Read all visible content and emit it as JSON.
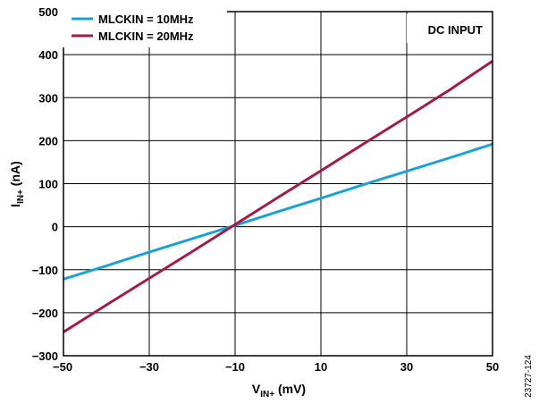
{
  "chart_data": {
    "type": "line",
    "x_label_main": "V",
    "x_label_sub": "IN+",
    "x_label_unit": " (mV)",
    "y_label_main": "I",
    "y_label_sub": "IN+",
    "y_label_unit": " (nA)",
    "xlim": [
      -50,
      50
    ],
    "ylim": [
      -300,
      500
    ],
    "x_ticks": [
      -50,
      -30,
      -10,
      10,
      30,
      50
    ],
    "x_tick_labels": [
      "−50",
      "−30",
      "−10",
      "10",
      "30",
      "50"
    ],
    "y_ticks": [
      500,
      400,
      300,
      200,
      100,
      0,
      -100,
      -200,
      -300
    ],
    "y_tick_labels": [
      "500",
      "400",
      "300",
      "200",
      "100",
      "0",
      "−100",
      "−200",
      "−300"
    ],
    "grid": true,
    "legend_position": "top-left",
    "annotation": "DC INPUT",
    "series": [
      {
        "name": "MLCKIN = 10MHz",
        "color": "#1BA1D5",
        "x": [
          -50,
          -40,
          -30,
          -20,
          -10,
          0,
          10,
          20,
          30,
          40,
          50
        ],
        "y": [
          -122,
          -91,
          -59,
          -28,
          3,
          35,
          66,
          98,
          129,
          160,
          192
        ]
      },
      {
        "name": "MLCKIN = 20MHz",
        "color": "#A01C47",
        "x": [
          -50,
          -40,
          -30,
          -20,
          -10,
          0,
          10,
          20,
          30,
          40,
          50
        ],
        "y": [
          -245,
          -182,
          -120,
          -58,
          5,
          68,
          130,
          193,
          255,
          318,
          385
        ]
      }
    ]
  },
  "figure_id": "23727-124"
}
